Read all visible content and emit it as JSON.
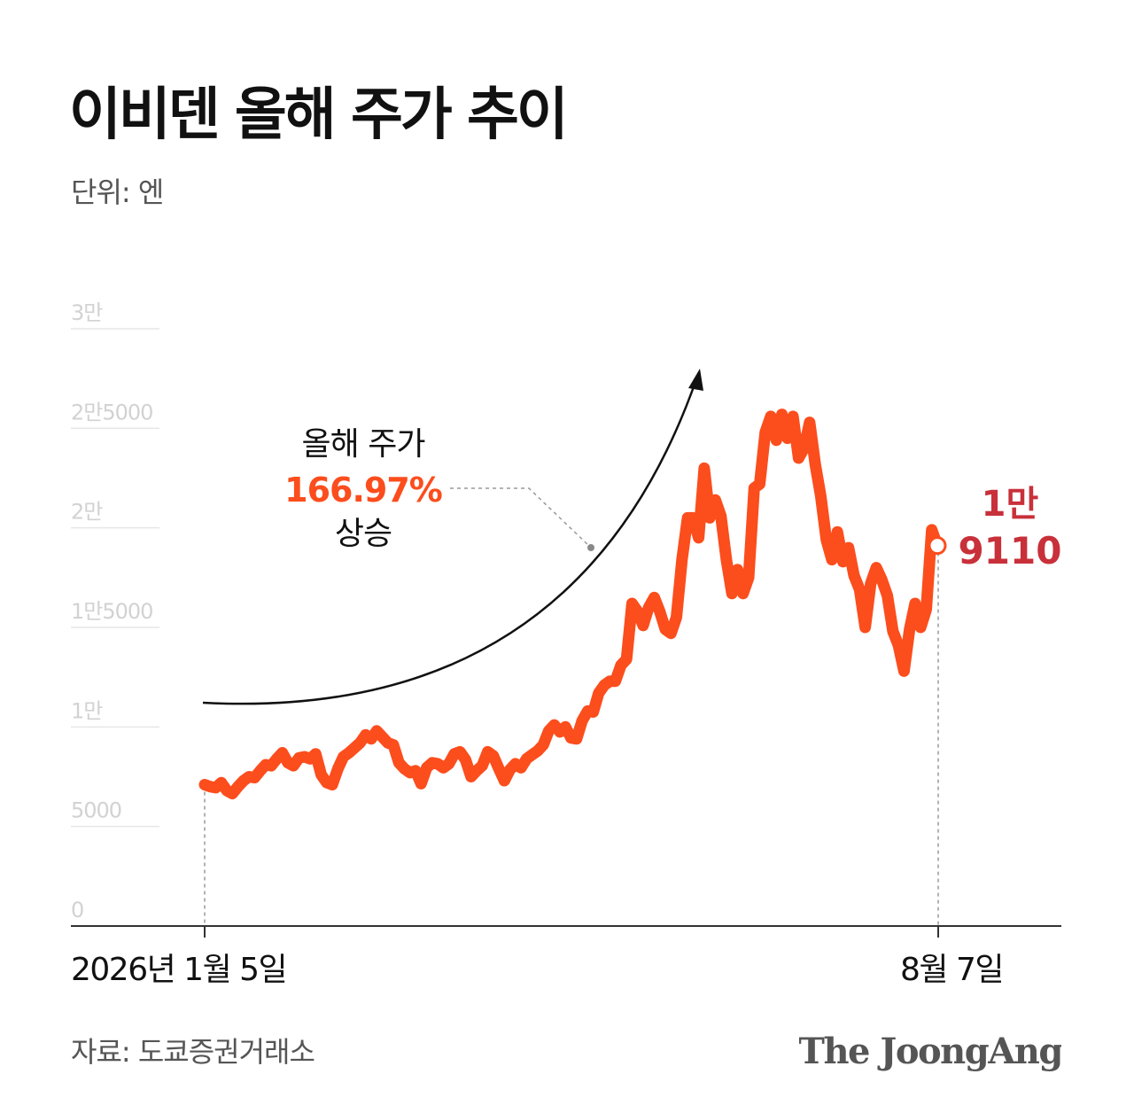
{
  "title": "이비덴 올해 주가 추이",
  "unit": "단위: 엔",
  "source": "자료: 도쿄증권거래소",
  "logo": "The JoongAng",
  "colors": {
    "line": "#fc4d1d",
    "highlight_value": "#c8303a",
    "annotation_pct": "#fc4d1d",
    "axis": "#333333",
    "gridline": "#e6e6e6",
    "tick_label": "#d2d2d2"
  },
  "chart_data": {
    "type": "line",
    "ylim": [
      0,
      30000
    ],
    "y_ticks": [
      {
        "value": 0,
        "label": "0"
      },
      {
        "value": 5000,
        "label": "5000"
      },
      {
        "value": 10000,
        "label": "1만"
      },
      {
        "value": 15000,
        "label": "1만5000"
      },
      {
        "value": 20000,
        "label": "2만"
      },
      {
        "value": 25000,
        "label": "2만5000"
      },
      {
        "value": 30000,
        "label": "3만"
      }
    ],
    "x_labels": {
      "start": "2026년 1월 5일",
      "end": "8월 7일"
    },
    "grid": "horizontal",
    "annotation": {
      "line1": "올해 주가",
      "pct": "166.97%",
      "line3": "상승"
    },
    "last_value_label": {
      "line1": "1만",
      "line2": "9110"
    },
    "last_value": 19110,
    "values": [
      7100,
      7000,
      6950,
      7200,
      6800,
      6650,
      7000,
      7300,
      7500,
      7450,
      7800,
      8100,
      8050,
      8400,
      8700,
      8200,
      8050,
      8450,
      8500,
      8400,
      8650,
      7600,
      7200,
      7100,
      7900,
      8500,
      8700,
      8950,
      9200,
      9600,
      9400,
      9800,
      9500,
      9200,
      9100,
      8200,
      7900,
      7700,
      7800,
      7150,
      7950,
      8200,
      8150,
      7950,
      8150,
      8650,
      8750,
      8350,
      7500,
      7800,
      8050,
      8750,
      8550,
      7900,
      7300,
      7850,
      8150,
      7950,
      8400,
      8600,
      8800,
      9100,
      9800,
      10100,
      9750,
      10000,
      9450,
      9400,
      10300,
      10800,
      10750,
      11700,
      12100,
      12300,
      12300,
      13100,
      13400,
      16200,
      15800,
      15100,
      16000,
      16500,
      15800,
      14900,
      14700,
      15500,
      18400,
      20500,
      20500,
      19500,
      23000,
      20500,
      21400,
      20600,
      18400,
      16700,
      17900,
      16700,
      17500,
      22000,
      22200,
      24800,
      25600,
      24400,
      25700,
      24500,
      25600,
      23500,
      24000,
      25300,
      23200,
      21600,
      19400,
      18400,
      19800,
      18300,
      19000,
      17600,
      16900,
      15000,
      17200,
      18000,
      17400,
      16600,
      14800,
      14100,
      12800,
      14900,
      16200,
      15000,
      15900,
      19900,
      19110
    ]
  }
}
